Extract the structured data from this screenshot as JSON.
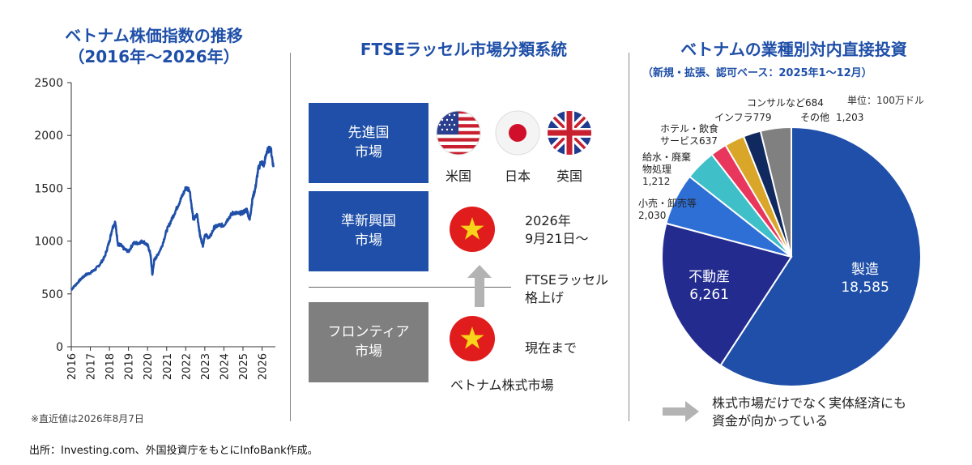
{
  "left": {
    "title_line1": "ベトナム株価指数の推移",
    "title_line2": "（2016年～2026年）",
    "note": "※直近値は2026年8月7日"
  },
  "middle": {
    "title": "FTSEラッセル市場分類系統",
    "boxes": [
      {
        "line1": "先進国",
        "line2": "市場",
        "color": "#1f4fa8"
      },
      {
        "line1": "準新興国",
        "line2": "市場",
        "color": "#1f4fa8"
      },
      {
        "line1": "フロンティア",
        "line2": "市場",
        "color": "#7f7f7f"
      }
    ],
    "flags": [
      {
        "label": "米国",
        "icon": "us-flag"
      },
      {
        "label": "日本",
        "icon": "japan-flag"
      },
      {
        "label": "英国",
        "icon": "uk-flag"
      }
    ],
    "date_line1": "2026年",
    "date_line2": "9月21日～",
    "upgrade_line1": "FTSEラッセル",
    "upgrade_line2": "格上げ",
    "current": "現在まで",
    "vn_label": "ベトナム株式市場"
  },
  "right": {
    "title": "ベトナムの業種別対内直接投資",
    "subtitle": "（新規・拡張、認可ベース：2025年1～12月）",
    "unit": "単位：100万ドル",
    "arrow_text_line1": "株式市場だけでなく実体経済にも",
    "arrow_text_line2": "資金が向かっている"
  },
  "source": "出所：Investing.com、外国投資庁をもとにInfoBank作成。",
  "chart_data": [
    {
      "type": "line",
      "title": "ベトナム株価指数の推移（2016年～2026年）",
      "xlabel": "",
      "ylabel": "",
      "ylim": [
        0,
        2500
      ],
      "yticks": [
        "0",
        "500",
        "1000",
        "1500",
        "2000",
        "2500"
      ],
      "xticks": [
        "2016",
        "2017",
        "2018",
        "2019",
        "2020",
        "2021",
        "2022",
        "2023",
        "2024",
        "2025",
        "2026"
      ],
      "grid": false,
      "series": [
        {
          "color": "#1f4fa8",
          "x": [
            2016.0,
            2016.25,
            2016.5,
            2016.75,
            2017.0,
            2017.25,
            2017.5,
            2017.75,
            2018.0,
            2018.15,
            2018.3,
            2018.45,
            2018.6,
            2018.75,
            2019.0,
            2019.25,
            2019.5,
            2019.75,
            2020.0,
            2020.15,
            2020.25,
            2020.35,
            2020.5,
            2020.75,
            2021.0,
            2021.25,
            2021.5,
            2021.75,
            2022.0,
            2022.2,
            2022.4,
            2022.6,
            2022.75,
            2022.9,
            2023.0,
            2023.25,
            2023.5,
            2023.75,
            2024.0,
            2024.25,
            2024.5,
            2024.75,
            2025.0,
            2025.2,
            2025.35,
            2025.5,
            2025.65,
            2025.8,
            2025.95,
            2026.1,
            2026.25,
            2026.45,
            2026.6
          ],
          "y": [
            540,
            590,
            640,
            680,
            700,
            730,
            780,
            850,
            1000,
            1120,
            1180,
            970,
            960,
            930,
            900,
            980,
            980,
            1000,
            960,
            880,
            680,
            820,
            860,
            950,
            1100,
            1200,
            1300,
            1400,
            1500,
            1490,
            1200,
            1250,
            1050,
            960,
            1060,
            1030,
            1130,
            1150,
            1150,
            1220,
            1270,
            1260,
            1270,
            1300,
            1200,
            1400,
            1500,
            1680,
            1750,
            1720,
            1850,
            1880,
            1700
          ]
        }
      ]
    },
    {
      "type": "pie",
      "title": "ベトナムの業種別対内直接投資",
      "subtitle": "（新規・拡張、認可ベース：2025年1～12月）",
      "unit": "単位：100万ドル",
      "slices": [
        {
          "label": "製造",
          "value": 18585,
          "value_text": "18,585",
          "color": "#1f4fa8"
        },
        {
          "label": "不動産",
          "value": 6261,
          "value_text": "6,261",
          "color": "#232b8f"
        },
        {
          "label": "小売・卸売等",
          "value": 2030,
          "value_text": "2,030",
          "color": "#2e6fd6"
        },
        {
          "label": "給水・廃棄物処理",
          "label_line1": "給水・廃棄",
          "label_line2": "物処理",
          "value": 1212,
          "value_text": "1,212",
          "color": "#3fbfc8"
        },
        {
          "label": "ホテル・飲食サービス",
          "label_line1": "ホテル・飲食",
          "label_line2": "サービス637",
          "value": 637,
          "value_text": "637",
          "color": "#e8365d"
        },
        {
          "label": "インフラ",
          "label_line1": "インフラ779",
          "value": 779,
          "value_text": "779",
          "color": "#d9a62a"
        },
        {
          "label": "コンサルなど",
          "label_line1": "コンサルなど684",
          "value": 684,
          "value_text": "684",
          "color": "#10295e"
        },
        {
          "label": "その他",
          "value": 1203,
          "value_text": "1,203",
          "color": "#808080"
        }
      ]
    }
  ]
}
